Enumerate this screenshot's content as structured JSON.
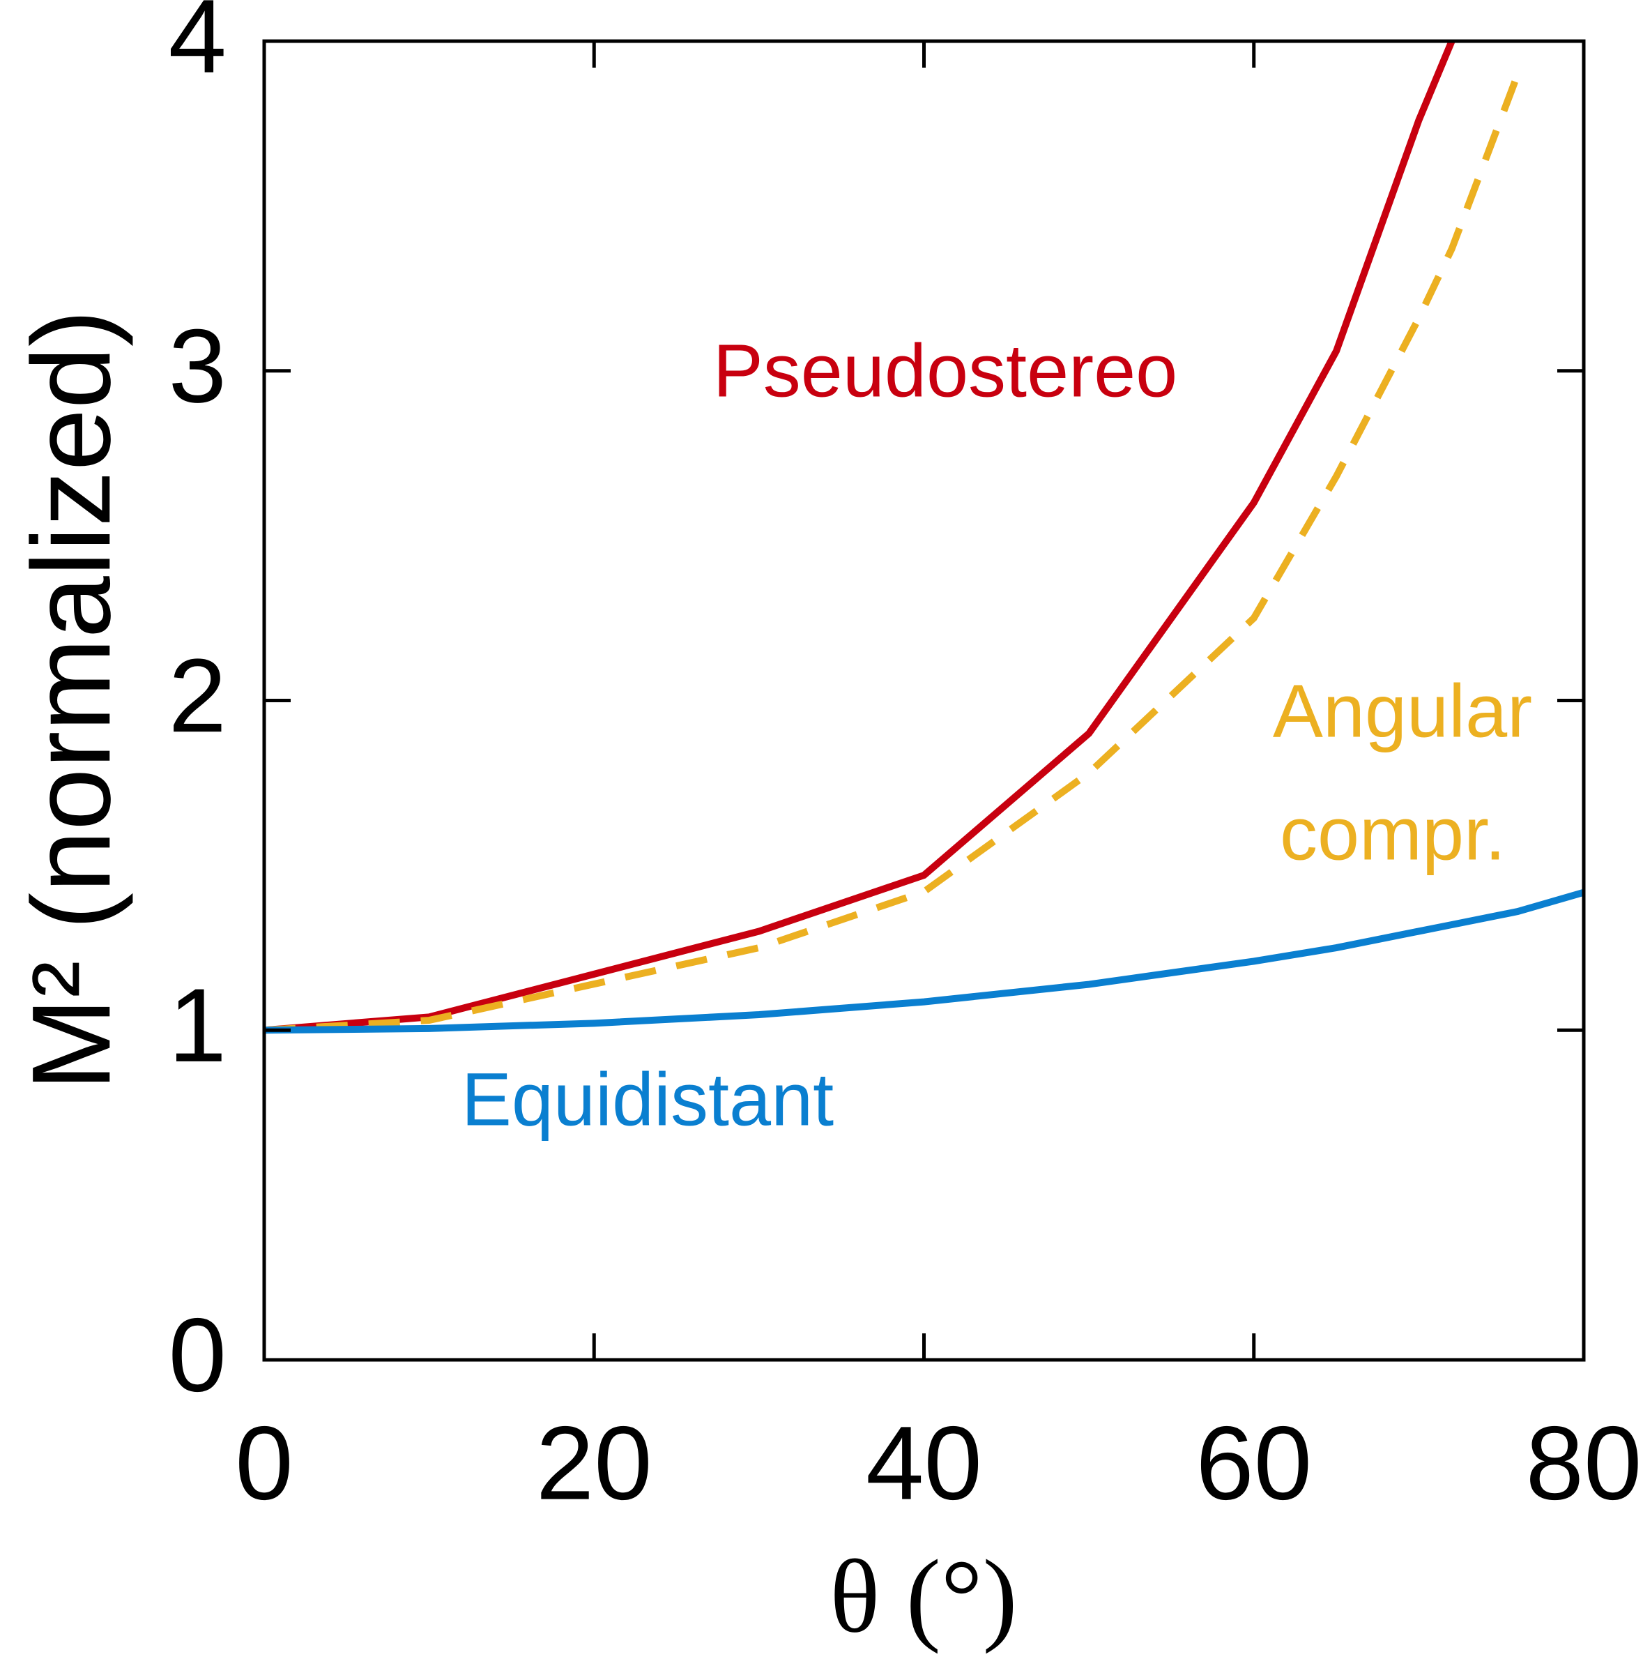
{
  "chart_data": {
    "type": "line",
    "x_label": "θ (°)",
    "y_label": "M² (normalized)",
    "x": [
      0,
      10,
      20,
      30,
      40,
      50,
      60,
      65,
      70,
      72,
      76,
      80
    ],
    "series": [
      {
        "name": "Pseudostereo",
        "color": "#c8000f",
        "dashed": false,
        "values": [
          1,
          1.04,
          1.17,
          1.3,
          1.47,
          1.9,
          2.6,
          3.06,
          3.76,
          4,
          null,
          null
        ]
      },
      {
        "name": "Angular compr.",
        "color": "#ecb021",
        "dashed": true,
        "values": [
          1,
          1.03,
          1.14,
          1.25,
          1.42,
          1.78,
          2.25,
          2.68,
          3.16,
          3.37,
          3.9,
          null
        ]
      },
      {
        "name": "Equidistant",
        "color": "#0a7fd0",
        "dashed": false,
        "values": [
          1,
          1.005,
          1.021,
          1.047,
          1.086,
          1.139,
          1.209,
          1.25,
          1.3,
          1.32,
          1.36,
          1.418
        ]
      }
    ],
    "annotations": [
      "Pseudostereo",
      "Angular",
      "compr.",
      "Equidistant"
    ],
    "xlim": [
      0,
      80
    ],
    "xticks": [
      0,
      20,
      40,
      60,
      80
    ],
    "ylim": [
      0,
      4
    ],
    "yticks": [
      0,
      1,
      2,
      3,
      4
    ]
  }
}
